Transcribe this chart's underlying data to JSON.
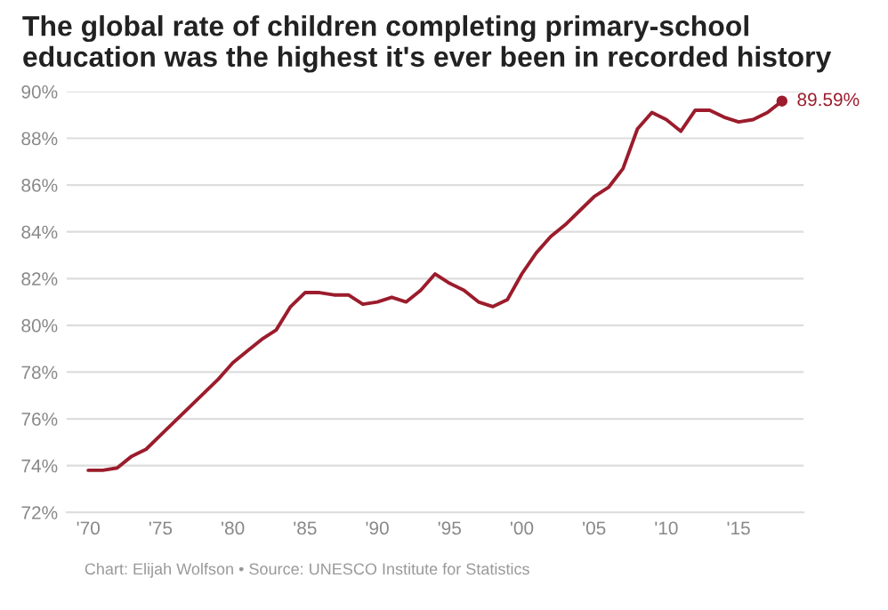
{
  "chart_data": {
    "type": "line",
    "title": "The global rate of children completing primary-school education was the highest it's ever been in recorded history",
    "x": [
      1970,
      1971,
      1972,
      1973,
      1974,
      1975,
      1976,
      1977,
      1978,
      1979,
      1980,
      1981,
      1982,
      1983,
      1984,
      1985,
      1986,
      1987,
      1988,
      1989,
      1990,
      1991,
      1992,
      1993,
      1994,
      1995,
      1996,
      1997,
      1998,
      1999,
      2000,
      2001,
      2002,
      2003,
      2004,
      2005,
      2006,
      2007,
      2008,
      2009,
      2010,
      2011,
      2012,
      2013,
      2014,
      2015,
      2016,
      2017,
      2018
    ],
    "series": [
      {
        "color": "#9b1c2c",
        "values": [
          73.8,
          73.8,
          73.9,
          74.4,
          74.7,
          75.3,
          75.9,
          76.5,
          77.1,
          77.7,
          78.4,
          78.9,
          79.4,
          79.8,
          80.8,
          81.4,
          81.4,
          81.3,
          81.3,
          80.9,
          81.0,
          81.2,
          81.0,
          81.5,
          82.2,
          81.8,
          81.5,
          81.0,
          80.8,
          81.1,
          82.2,
          83.1,
          83.8,
          84.3,
          84.9,
          85.5,
          85.9,
          86.7,
          88.4,
          89.1,
          88.8,
          88.3,
          89.2,
          89.2,
          88.9,
          88.7,
          88.8,
          89.1,
          89.59
        ]
      }
    ],
    "xlim": [
      1968.5,
      2019.5
    ],
    "ylim": [
      72,
      90
    ],
    "xticks": [
      {
        "value": 1970,
        "label": "'70"
      },
      {
        "value": 1975,
        "label": "'75"
      },
      {
        "value": 1980,
        "label": "'80"
      },
      {
        "value": 1985,
        "label": "'85"
      },
      {
        "value": 1990,
        "label": "'90"
      },
      {
        "value": 1995,
        "label": "'95"
      },
      {
        "value": 2000,
        "label": "'00"
      },
      {
        "value": 2005,
        "label": "'05"
      },
      {
        "value": 2010,
        "label": "'10"
      },
      {
        "value": 2015,
        "label": "'15"
      }
    ],
    "yticks": [
      {
        "value": 72,
        "label": "72%"
      },
      {
        "value": 74,
        "label": "74%"
      },
      {
        "value": 76,
        "label": "76%"
      },
      {
        "value": 78,
        "label": "78%"
      },
      {
        "value": 80,
        "label": "80%"
      },
      {
        "value": 82,
        "label": "82%"
      },
      {
        "value": 84,
        "label": "84%"
      },
      {
        "value": 86,
        "label": "86%"
      },
      {
        "value": 88,
        "label": "88%"
      },
      {
        "value": 90,
        "label": "90%"
      }
    ],
    "grid": "y",
    "annotations": [
      {
        "text": "89.59%",
        "x": 2018,
        "y": 89.59
      },
      "Chart: Elijah Wolfson • Source: UNESCO Institute for Statistics"
    ]
  }
}
